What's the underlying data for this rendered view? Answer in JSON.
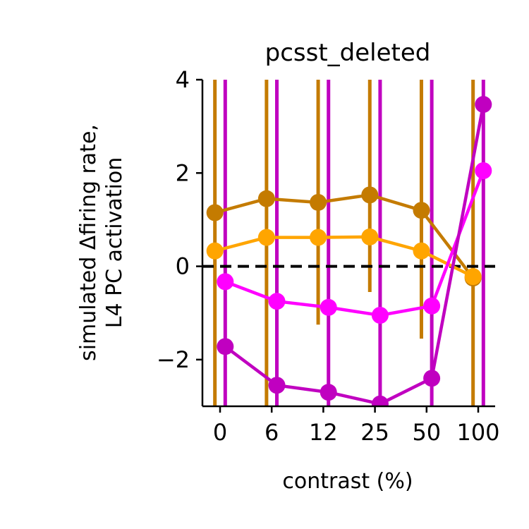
{
  "chart_data": {
    "type": "line",
    "title": "pcsst_deleted",
    "xlabel": "contrast (%)",
    "ylabel_lines": [
      "simulated Δfiring rate,",
      "L4 PC activation"
    ],
    "categories": [
      "0",
      "6",
      "12",
      "25",
      "50",
      "100"
    ],
    "ylim": [
      -3,
      4
    ],
    "yticks": [
      -2,
      0,
      2,
      4
    ],
    "ytick_labels": [
      "−2",
      "0",
      "2",
      "4"
    ],
    "zero_line": true,
    "grid": false,
    "series": [
      {
        "color": "#C47B00",
        "offset": -0.1,
        "values": [
          1.15,
          1.45,
          1.37,
          1.53,
          1.2,
          -0.25
        ],
        "err_low": [
          -3.0,
          -3.0,
          -1.25,
          -0.55,
          -1.55,
          -3.0
        ],
        "err_high": [
          4.0,
          4.0,
          4.0,
          4.0,
          4.0,
          4.0
        ]
      },
      {
        "color": "#FFA500",
        "offset": -0.1,
        "values": [
          0.33,
          0.62,
          0.62,
          0.63,
          0.33,
          -0.22
        ],
        "err_low": null,
        "err_high": null
      },
      {
        "color": "#FF00FF",
        "offset": 0.1,
        "values": [
          -0.33,
          -0.75,
          -0.88,
          -1.05,
          -0.85,
          2.05
        ],
        "err_low": null,
        "err_high": null
      },
      {
        "color": "#C000C0",
        "offset": 0.1,
        "values": [
          -1.72,
          -2.55,
          -2.7,
          -2.95,
          -2.4,
          3.47
        ],
        "err_low": [
          -3.0,
          -3.0,
          -3.0,
          -3.0,
          -3.0,
          -3.0
        ],
        "err_high": [
          4.0,
          4.0,
          4.0,
          4.0,
          4.0,
          4.0
        ]
      }
    ]
  }
}
